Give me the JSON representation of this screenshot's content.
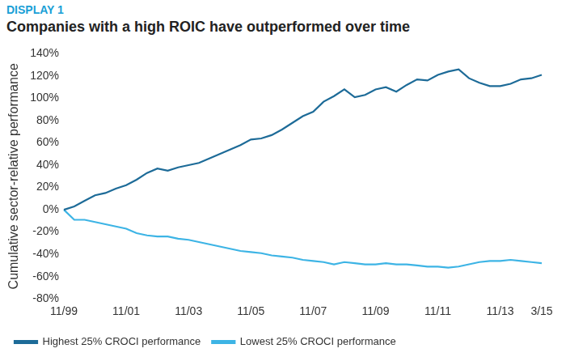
{
  "chart_data": {
    "type": "line",
    "title": "DISPLAY 1",
    "subtitle": "Companies with a high ROIC have outperformed over time",
    "y_label": "Cumulative sector-relative performance",
    "categories": [
      "11/99",
      null,
      null,
      null,
      null,
      null,
      "11/01",
      null,
      null,
      null,
      null,
      null,
      "11/03",
      null,
      null,
      null,
      null,
      null,
      "11/05",
      null,
      null,
      null,
      null,
      null,
      "11/07",
      null,
      null,
      null,
      null,
      null,
      "11/09",
      null,
      null,
      null,
      null,
      null,
      "11/11",
      null,
      null,
      null,
      null,
      null,
      "11/13",
      null,
      null,
      null,
      "3/15"
    ],
    "series": [
      {
        "name": "Highest 25% CROCI performance",
        "color": "#1d6b98",
        "values": [
          0,
          3,
          8,
          13,
          15,
          19,
          22,
          27,
          33,
          37,
          35,
          38,
          40,
          42,
          46,
          50,
          54,
          58,
          63,
          64,
          67,
          72,
          78,
          84,
          88,
          97,
          102,
          108,
          101,
          103,
          108,
          110,
          106,
          112,
          117,
          116,
          121,
          124,
          126,
          118,
          114,
          111,
          111,
          113,
          117,
          118,
          121
        ]
      },
      {
        "name": "Lowest 25% CROCI performance",
        "color": "#3db4e5",
        "values": [
          0,
          -9,
          -9,
          -11,
          -13,
          -15,
          -17,
          -21,
          -23,
          -24,
          -24,
          -26,
          -27,
          -29,
          -31,
          -33,
          -35,
          -37,
          -38,
          -39,
          -41,
          -42,
          -43,
          -45,
          -46,
          -47,
          -49,
          -47,
          -48,
          -49,
          -49,
          -48,
          -49,
          -49,
          -50,
          -51,
          -51,
          -52,
          -51,
          -49,
          -47,
          -46,
          -46,
          -45,
          -46,
          -47,
          -48
        ]
      }
    ],
    "ylim": [
      -80,
      140
    ],
    "yticks": [
      {
        "value": -80,
        "label": "-80%"
      },
      {
        "value": -60,
        "label": "-60%"
      },
      {
        "value": -40,
        "label": "-40%"
      },
      {
        "value": -20,
        "label": "-20%"
      },
      {
        "value": 0,
        "label": "0%"
      },
      {
        "value": 20,
        "label": "20%"
      },
      {
        "value": 40,
        "label": "40%"
      },
      {
        "value": 60,
        "label": "60%"
      },
      {
        "value": 80,
        "label": "80%"
      },
      {
        "value": 100,
        "label": "100%"
      },
      {
        "value": 120,
        "label": "120%"
      },
      {
        "value": 140,
        "label": "140%"
      }
    ],
    "grid": false,
    "legend": "bottom"
  }
}
